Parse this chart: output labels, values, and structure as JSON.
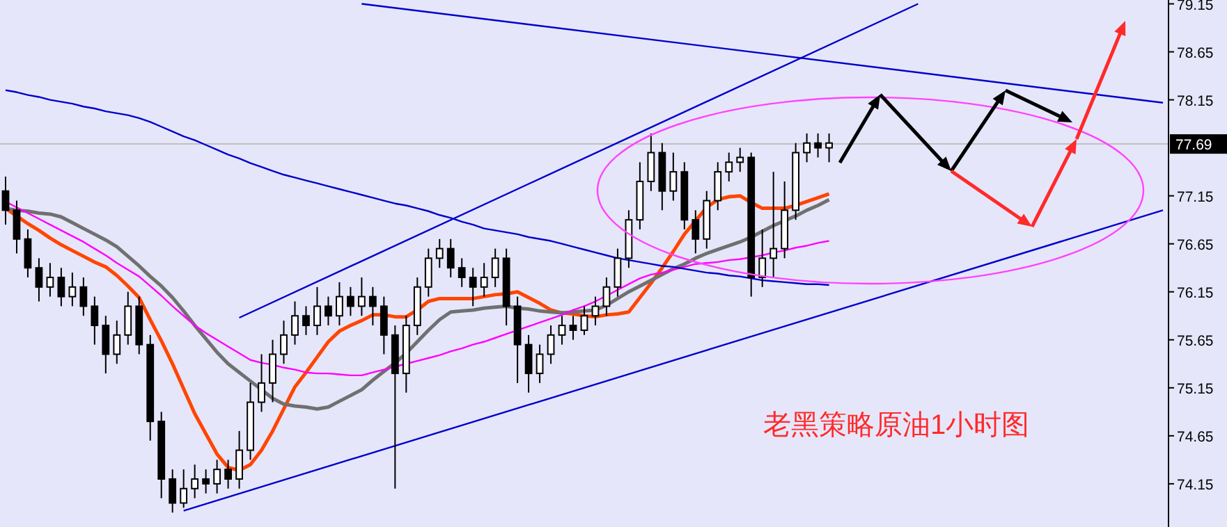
{
  "chart_data": {
    "type": "candlestick",
    "categories": [
      null,
      null,
      null,
      null,
      null,
      null,
      null,
      null,
      null,
      null,
      null,
      null,
      null,
      null,
      null,
      null,
      null,
      null,
      null,
      null,
      null,
      null,
      null,
      null,
      null,
      null,
      null,
      null,
      null,
      null,
      null,
      null,
      null,
      null,
      null,
      null,
      null,
      null,
      null,
      null,
      null,
      null,
      null,
      null,
      null,
      null,
      null,
      null,
      null,
      null,
      null,
      null,
      null,
      null,
      null,
      null,
      null,
      null,
      null,
      null,
      null,
      null,
      null,
      null,
      null,
      null,
      null,
      null,
      null,
      null,
      null,
      null,
      null,
      null,
      null,
      null,
      null,
      null,
      null,
      null,
      null,
      null,
      null,
      null,
      null,
      null,
      null,
      null,
      null,
      null,
      null,
      null,
      null,
      null,
      null,
      null,
      null,
      null,
      null,
      null,
      null,
      null,
      null,
      null,
      null
    ],
    "ohlc": [
      [
        77.2,
        77.35,
        76.85,
        77.0
      ],
      [
        77.0,
        77.1,
        76.55,
        76.7
      ],
      [
        76.7,
        76.8,
        76.3,
        76.4
      ],
      [
        76.4,
        76.5,
        76.05,
        76.2
      ],
      [
        76.2,
        76.45,
        76.1,
        76.3
      ],
      [
        76.3,
        76.4,
        76.0,
        76.1
      ],
      [
        76.1,
        76.35,
        76.0,
        76.2
      ],
      [
        76.2,
        76.3,
        75.9,
        76.0
      ],
      [
        76.0,
        76.1,
        75.6,
        75.8
      ],
      [
        75.8,
        75.9,
        75.3,
        75.5
      ],
      [
        75.5,
        75.85,
        75.4,
        75.7
      ],
      [
        75.7,
        76.15,
        75.6,
        76.0
      ],
      [
        76.0,
        76.1,
        75.5,
        75.6
      ],
      [
        75.6,
        75.7,
        74.6,
        74.8
      ],
      [
        74.8,
        74.9,
        74.0,
        74.2
      ],
      [
        74.2,
        74.3,
        73.85,
        73.95
      ],
      [
        73.95,
        74.3,
        73.9,
        74.1
      ],
      [
        74.1,
        74.35,
        74.0,
        74.2
      ],
      [
        74.2,
        74.3,
        74.05,
        74.15
      ],
      [
        74.15,
        74.4,
        74.05,
        74.3
      ],
      [
        74.3,
        74.4,
        74.1,
        74.2
      ],
      [
        74.2,
        74.7,
        74.1,
        74.5
      ],
      [
        74.5,
        75.2,
        74.4,
        75.0
      ],
      [
        75.0,
        75.5,
        74.9,
        75.2
      ],
      [
        75.2,
        75.65,
        75.0,
        75.5
      ],
      [
        75.5,
        75.85,
        75.4,
        75.7
      ],
      [
        75.7,
        76.05,
        75.6,
        75.9
      ],
      [
        75.9,
        76.0,
        75.7,
        75.8
      ],
      [
        75.8,
        76.2,
        75.7,
        76.0
      ],
      [
        76.0,
        76.1,
        75.8,
        75.9
      ],
      [
        75.9,
        76.25,
        75.8,
        76.1
      ],
      [
        76.1,
        76.2,
        75.9,
        76.0
      ],
      [
        76.0,
        76.3,
        75.9,
        76.1
      ],
      [
        76.1,
        76.2,
        75.8,
        76.0
      ],
      [
        76.0,
        76.1,
        75.5,
        75.7
      ],
      [
        75.7,
        75.8,
        74.1,
        75.3
      ],
      [
        75.3,
        75.9,
        75.1,
        75.8
      ],
      [
        75.8,
        76.3,
        75.7,
        76.2
      ],
      [
        76.2,
        76.6,
        76.1,
        76.5
      ],
      [
        76.5,
        76.7,
        76.4,
        76.6
      ],
      [
        76.6,
        76.7,
        76.3,
        76.4
      ],
      [
        76.4,
        76.5,
        76.2,
        76.3
      ],
      [
        76.3,
        76.4,
        76.0,
        76.2
      ],
      [
        76.2,
        76.45,
        76.1,
        76.3
      ],
      [
        76.3,
        76.6,
        76.2,
        76.5
      ],
      [
        76.5,
        76.6,
        75.8,
        76.0
      ],
      [
        76.0,
        76.1,
        75.2,
        75.6
      ],
      [
        75.6,
        75.7,
        75.1,
        75.3
      ],
      [
        75.3,
        75.6,
        75.2,
        75.5
      ],
      [
        75.5,
        75.8,
        75.4,
        75.7
      ],
      [
        75.7,
        75.9,
        75.6,
        75.8
      ],
      [
        75.8,
        75.9,
        75.65,
        75.75
      ],
      [
        75.75,
        76.0,
        75.7,
        75.9
      ],
      [
        75.9,
        76.1,
        75.8,
        76.0
      ],
      [
        76.0,
        76.3,
        75.9,
        76.2
      ],
      [
        76.2,
        76.6,
        76.1,
        76.5
      ],
      [
        76.5,
        77.0,
        76.4,
        76.9
      ],
      [
        76.9,
        77.5,
        76.8,
        77.3
      ],
      [
        77.3,
        77.8,
        77.2,
        77.6
      ],
      [
        77.6,
        77.7,
        77.0,
        77.2
      ],
      [
        77.2,
        77.6,
        77.1,
        77.4
      ],
      [
        77.4,
        77.5,
        76.8,
        76.9
      ],
      [
        76.9,
        77.0,
        76.55,
        76.7
      ],
      [
        76.7,
        77.2,
        76.6,
        77.1
      ],
      [
        77.1,
        77.5,
        77.0,
        77.4
      ],
      [
        77.4,
        77.6,
        77.3,
        77.5
      ],
      [
        77.5,
        77.65,
        77.4,
        77.55
      ],
      [
        77.55,
        77.6,
        76.1,
        76.3
      ],
      [
        76.3,
        76.8,
        76.2,
        76.5
      ],
      [
        76.5,
        77.4,
        76.3,
        76.6
      ],
      [
        76.6,
        77.3,
        76.5,
        77.0
      ],
      [
        77.0,
        77.7,
        76.9,
        77.6
      ],
      [
        77.6,
        77.8,
        77.5,
        77.7
      ],
      [
        77.7,
        77.8,
        77.55,
        77.65
      ],
      [
        77.65,
        77.8,
        77.5,
        77.7
      ],
      null,
      null,
      null,
      null,
      null,
      null,
      null,
      null,
      null,
      null,
      null,
      null,
      null,
      null,
      null,
      null,
      null,
      null,
      null,
      null,
      null,
      null,
      null,
      null,
      null,
      null,
      null,
      null,
      null,
      null
    ],
    "series": [
      {
        "type": "line",
        "color": "#ff4500",
        "values": [
          77.02,
          76.94,
          76.86,
          76.79,
          76.71,
          76.64,
          76.58,
          76.52,
          76.46,
          76.41,
          76.32,
          76.21,
          76.09,
          75.86,
          75.64,
          75.4,
          75.14,
          74.88,
          74.67,
          74.46,
          74.32,
          74.29,
          74.35,
          74.5,
          74.7,
          74.93,
          75.16,
          75.31,
          75.47,
          75.63,
          75.74,
          75.8,
          75.85,
          75.91,
          75.91,
          75.89,
          75.89,
          75.96,
          76.05,
          76.08,
          76.08,
          76.08,
          76.08,
          76.1,
          76.12,
          76.13,
          76.15,
          76.09,
          76.03,
          75.96,
          75.93,
          75.92,
          75.9,
          75.89,
          75.91,
          75.92,
          75.94,
          76.09,
          76.24,
          76.4,
          76.57,
          76.75,
          76.89,
          77.03,
          77.11,
          77.14,
          77.15,
          77.08,
          77.02,
          77.02,
          77.02,
          77.05,
          77.09,
          77.13,
          77.17,
          null,
          null,
          null,
          null,
          null,
          null,
          null,
          null,
          null,
          null,
          null,
          null,
          null,
          null,
          null,
          null,
          null,
          null,
          null,
          null,
          null,
          null,
          null,
          null,
          null,
          null,
          null,
          null,
          null,
          null
        ]
      },
      {
        "type": "line",
        "color": "#707070",
        "values": [
          77.02,
          77.0,
          76.99,
          76.97,
          76.96,
          76.93,
          76.87,
          76.81,
          76.75,
          76.69,
          76.62,
          76.52,
          76.42,
          76.31,
          76.21,
          76.09,
          75.95,
          75.8,
          75.66,
          75.52,
          75.4,
          75.31,
          75.22,
          75.13,
          75.04,
          74.98,
          74.96,
          74.95,
          74.93,
          74.95,
          75.01,
          75.07,
          75.13,
          75.23,
          75.32,
          75.41,
          75.51,
          75.63,
          75.75,
          75.86,
          75.94,
          75.95,
          75.96,
          75.98,
          75.99,
          76.0,
          75.98,
          75.97,
          75.95,
          75.94,
          75.93,
          75.94,
          75.95,
          75.96,
          76.01,
          76.08,
          76.15,
          76.21,
          76.27,
          76.33,
          76.39,
          76.44,
          76.5,
          76.55,
          76.59,
          76.63,
          76.67,
          76.72,
          76.78,
          76.84,
          76.89,
          76.94,
          77.0,
          77.05,
          77.11,
          null,
          null,
          null,
          null,
          null,
          null,
          null,
          null,
          null,
          null,
          null,
          null,
          null,
          null,
          null,
          null,
          null,
          null,
          null,
          null,
          null,
          null,
          null,
          null,
          null,
          null,
          null,
          null,
          null,
          null
        ]
      },
      {
        "type": "line",
        "color": "#ff00ff",
        "values": [
          77.09,
          77.03,
          76.97,
          76.91,
          76.85,
          76.79,
          76.73,
          76.67,
          76.6,
          76.53,
          76.45,
          76.38,
          76.31,
          76.21,
          76.11,
          76.0,
          75.9,
          75.8,
          75.72,
          75.65,
          75.58,
          75.51,
          75.44,
          75.41,
          75.39,
          75.36,
          75.34,
          75.31,
          75.3,
          75.3,
          75.29,
          75.28,
          75.28,
          75.31,
          75.34,
          75.37,
          75.4,
          75.43,
          75.46,
          75.49,
          75.53,
          75.56,
          75.6,
          75.63,
          75.67,
          75.71,
          75.75,
          75.79,
          75.83,
          75.87,
          75.91,
          75.96,
          76.0,
          76.05,
          76.11,
          76.17,
          76.23,
          76.29,
          76.33,
          76.35,
          76.38,
          76.41,
          76.44,
          76.45,
          76.46,
          76.48,
          76.49,
          76.51,
          76.53,
          76.56,
          76.58,
          76.61,
          76.63,
          76.66,
          76.68,
          null,
          null,
          null,
          null,
          null,
          null,
          null,
          null,
          null,
          null,
          null,
          null,
          null,
          null,
          null,
          null,
          null,
          null,
          null,
          null,
          null,
          null,
          null,
          null,
          null,
          null,
          null,
          null,
          null,
          null
        ]
      },
      {
        "type": "line",
        "color": "#0000cd",
        "values": [
          78.25,
          78.23,
          78.2,
          78.18,
          78.15,
          78.13,
          78.11,
          78.08,
          78.06,
          78.03,
          78.01,
          77.99,
          77.96,
          77.92,
          77.87,
          77.82,
          77.77,
          77.73,
          77.68,
          77.63,
          77.58,
          77.54,
          77.49,
          77.45,
          77.41,
          77.37,
          77.34,
          77.31,
          77.28,
          77.25,
          77.22,
          77.19,
          77.16,
          77.13,
          77.1,
          77.07,
          77.05,
          77.02,
          76.99,
          76.95,
          76.92,
          76.88,
          76.85,
          76.81,
          76.79,
          76.77,
          76.75,
          76.72,
          76.7,
          76.68,
          76.65,
          76.62,
          76.59,
          76.56,
          76.53,
          76.5,
          76.48,
          76.46,
          76.44,
          76.42,
          76.41,
          76.39,
          76.37,
          76.35,
          76.34,
          76.32,
          76.31,
          76.29,
          76.27,
          76.26,
          76.25,
          76.24,
          76.23,
          76.23,
          76.22,
          null,
          null,
          null,
          null,
          null,
          null,
          null,
          null,
          null,
          null,
          null,
          null,
          null,
          null,
          null,
          null,
          null,
          null,
          null,
          null,
          null,
          null,
          null,
          null,
          null,
          null,
          null,
          null,
          null,
          null
        ]
      },
      {
        "type": "line",
        "color": "#0000cd",
        "values": [
          null,
          null,
          null,
          null,
          null,
          null,
          null,
          null,
          null,
          null,
          null,
          null,
          null,
          null,
          null,
          null,
          null,
          null,
          null,
          null,
          null,
          75.88,
          null,
          null,
          null,
          null,
          null,
          null,
          null,
          null,
          null,
          null,
          null,
          null,
          null,
          null,
          null,
          null,
          null,
          null,
          null,
          null,
          null,
          null,
          null,
          null,
          null,
          null,
          null,
          null,
          null,
          null,
          null,
          null,
          null,
          null,
          null,
          null,
          null,
          null,
          null,
          null,
          null,
          null,
          null,
          null,
          null,
          null,
          null,
          null,
          null,
          null,
          null,
          null,
          null,
          null,
          null,
          null,
          null,
          null,
          null,
          null,
          79.15,
          null,
          null,
          null,
          null,
          null,
          null,
          null,
          null,
          null,
          null,
          null,
          null,
          null,
          null,
          null,
          null,
          null,
          null,
          null,
          null,
          null,
          null
        ]
      },
      {
        "type": "line",
        "color": "#0000cd",
        "values": [
          null,
          null,
          null,
          null,
          null,
          null,
          null,
          null,
          null,
          null,
          null,
          null,
          null,
          null,
          null,
          null,
          73.87,
          null,
          null,
          null,
          null,
          null,
          null,
          null,
          null,
          null,
          null,
          null,
          null,
          null,
          null,
          null,
          null,
          null,
          null,
          null,
          null,
          null,
          null,
          null,
          null,
          null,
          null,
          null,
          null,
          null,
          null,
          null,
          null,
          null,
          null,
          null,
          null,
          null,
          null,
          null,
          null,
          null,
          null,
          null,
          null,
          null,
          null,
          null,
          null,
          null,
          null,
          null,
          null,
          null,
          null,
          null,
          null,
          null,
          null,
          null,
          null,
          null,
          null,
          null,
          null,
          null,
          null,
          null,
          null,
          null,
          null,
          null,
          null,
          null,
          null,
          null,
          null,
          null,
          null,
          null,
          null,
          null,
          null,
          null,
          null,
          null,
          null,
          null,
          77.0
        ]
      },
      {
        "type": "line",
        "color": "#0000cd",
        "values": [
          null,
          null,
          null,
          null,
          null,
          null,
          null,
          null,
          null,
          null,
          null,
          null,
          null,
          null,
          null,
          null,
          null,
          null,
          null,
          null,
          null,
          null,
          null,
          null,
          null,
          null,
          null,
          null,
          null,
          null,
          null,
          null,
          79.15,
          null,
          null,
          null,
          null,
          null,
          null,
          null,
          null,
          null,
          null,
          null,
          null,
          null,
          null,
          null,
          null,
          null,
          null,
          null,
          null,
          null,
          null,
          null,
          null,
          null,
          null,
          null,
          null,
          null,
          null,
          null,
          null,
          null,
          null,
          null,
          null,
          null,
          null,
          null,
          null,
          null,
          null,
          null,
          null,
          null,
          null,
          null,
          null,
          null,
          null,
          null,
          null,
          null,
          null,
          null,
          null,
          null,
          null,
          null,
          null,
          null,
          null,
          null,
          null,
          null,
          null,
          null,
          null,
          null,
          null,
          null,
          78.12
        ]
      }
    ],
    "ylim": [
      73.7,
      79.19
    ],
    "yticks": [
      74.15,
      74.65,
      75.15,
      75.65,
      76.15,
      76.65,
      77.15,
      78.15,
      78.65,
      79.15
    ],
    "ref_lines": [
      {
        "axis": "y",
        "value": 77.69,
        "label": "77.69",
        "color": "#c0c0c0"
      }
    ],
    "tick_labels": "y",
    "grid": false,
    "annotations": [
      "老黑策略原油1小时图"
    ]
  }
}
